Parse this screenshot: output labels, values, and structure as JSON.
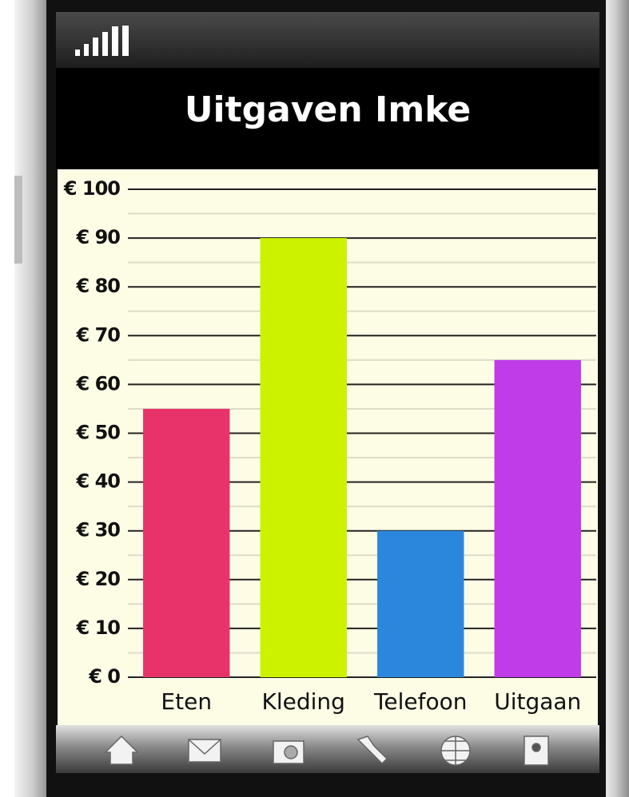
{
  "chart_data": {
    "type": "bar",
    "title": "Uitgaven Imke",
    "categories": [
      "Eten",
      "Kleding",
      "Telefoon",
      "Uitgaan"
    ],
    "values": [
      55,
      90,
      30,
      65
    ],
    "colors": [
      "#e8336a",
      "#ccf200",
      "#2b87db",
      "#c03ce8"
    ],
    "ylim": [
      0,
      100
    ],
    "yticks": [
      {
        "value": 0,
        "label": "€ 0"
      },
      {
        "value": 10,
        "label": "€ 10"
      },
      {
        "value": 20,
        "label": "€ 20"
      },
      {
        "value": 30,
        "label": "€ 30"
      },
      {
        "value": 40,
        "label": "€ 40"
      },
      {
        "value": 50,
        "label": "€ 50"
      },
      {
        "value": 60,
        "label": "€ 60"
      },
      {
        "value": 70,
        "label": "€ 70"
      },
      {
        "value": 80,
        "label": "€ 80"
      },
      {
        "value": 90,
        "label": "€ 90"
      },
      {
        "value": 100,
        "label": "€ 100"
      }
    ],
    "grid": true
  }
}
